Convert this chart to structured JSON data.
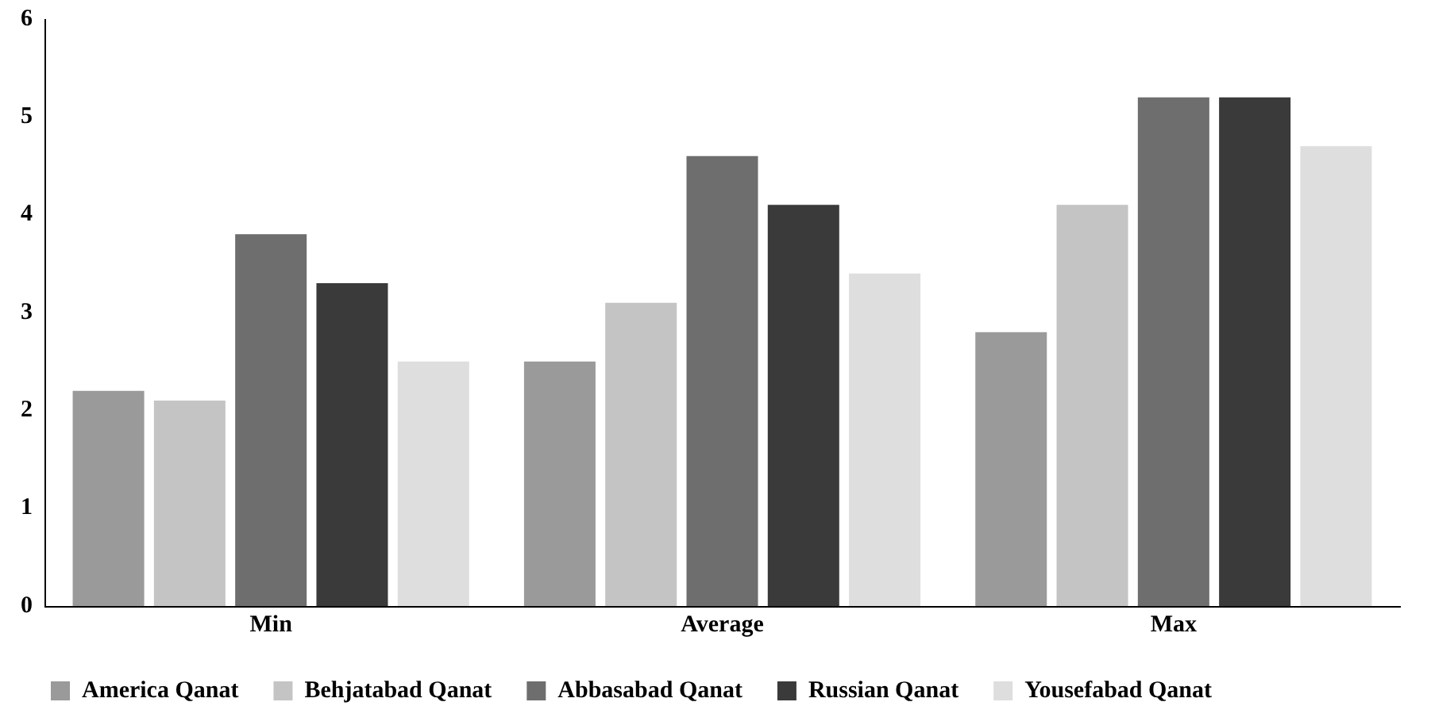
{
  "chart_data": {
    "type": "bar",
    "categories": [
      "Min",
      "Average",
      "Max"
    ],
    "series": [
      {
        "name": "America Qanat",
        "color": "#9a9a9a",
        "values": [
          2.2,
          2.5,
          2.8
        ]
      },
      {
        "name": "Behjatabad Qanat",
        "color": "#c4c4c4",
        "values": [
          2.1,
          3.1,
          4.1
        ]
      },
      {
        "name": "Abbasabad Qanat",
        "color": "#6e6e6e",
        "values": [
          3.8,
          4.6,
          5.2
        ]
      },
      {
        "name": "Russian Qanat",
        "color": "#3a3a3a",
        "values": [
          3.3,
          4.1,
          5.2
        ]
      },
      {
        "name": "Yousefabad Qanat",
        "color": "#dedede",
        "values": [
          2.5,
          3.4,
          4.7
        ]
      }
    ],
    "ylim": [
      0,
      6
    ],
    "yticks": [
      0,
      1,
      2,
      3,
      4,
      5,
      6
    ],
    "grid": false,
    "legend": "bottom"
  }
}
